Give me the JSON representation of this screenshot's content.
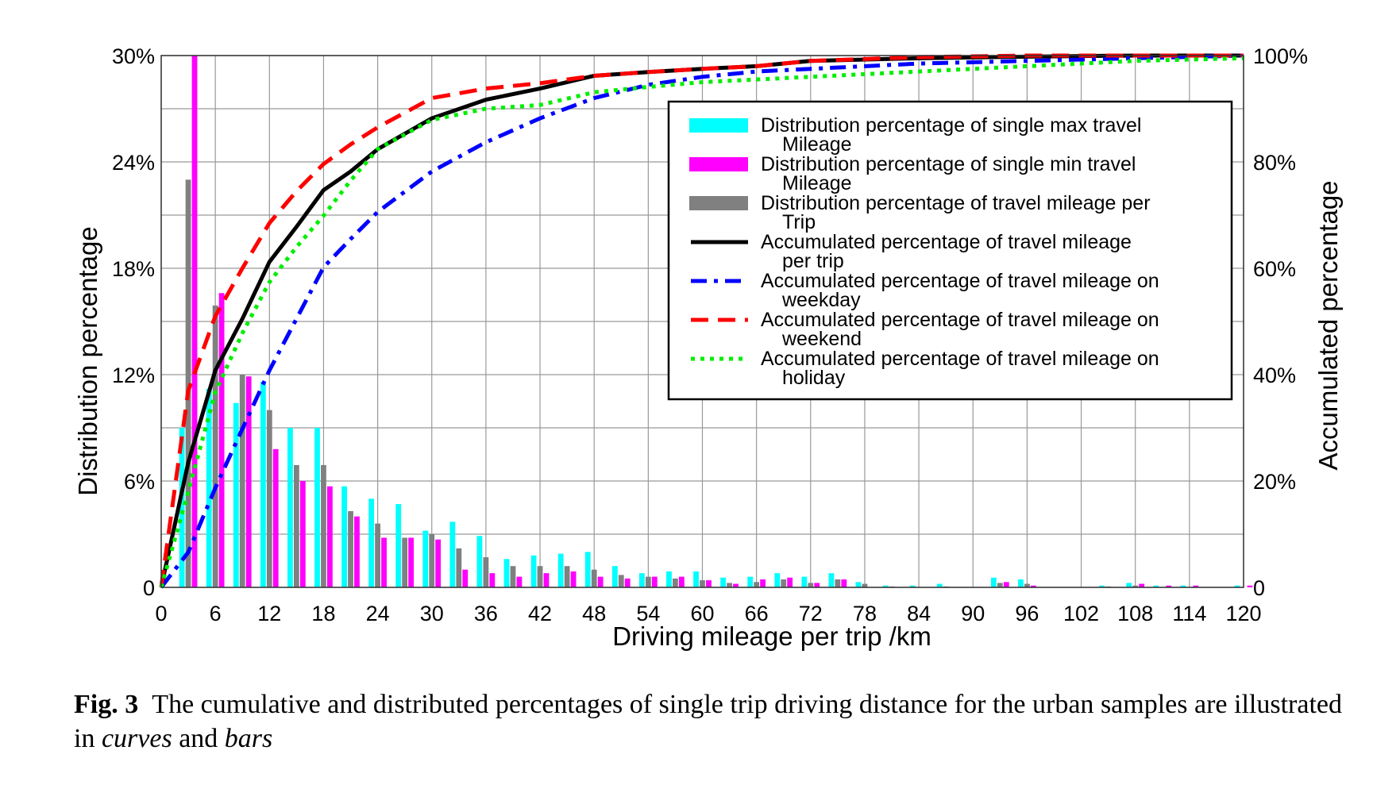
{
  "chart_data": {
    "type": "bar+line",
    "xlabel": "Driving mileage per trip /km",
    "ylabel": "Distribution percentage",
    "y2label": "Accumulated percentage",
    "xlim": [
      0,
      120
    ],
    "ylim": [
      0,
      30
    ],
    "y2lim": [
      0,
      100
    ],
    "grid": true,
    "legend_position": "center-right",
    "x_ticks": [
      "0",
      "6",
      "12",
      "18",
      "24",
      "30",
      "36",
      "42",
      "48",
      "54",
      "60",
      "66",
      "72",
      "78",
      "84",
      "90",
      "96",
      "102",
      "108",
      "114",
      "120"
    ],
    "y_ticks": [
      "0",
      "6%",
      "12%",
      "18%",
      "24%",
      "30%"
    ],
    "y2_ticks": [
      "0",
      "20%",
      "40%",
      "60%",
      "80%",
      "100%"
    ],
    "bar_x": [
      3,
      6,
      9,
      12,
      15,
      18,
      21,
      24,
      27,
      30,
      33,
      36,
      39,
      42,
      45,
      48,
      51,
      54,
      57,
      60,
      63,
      66,
      69,
      72,
      75,
      78,
      81,
      84,
      87,
      90,
      93,
      96,
      99,
      102,
      105,
      108,
      111,
      114,
      117,
      120
    ],
    "bar_series": [
      {
        "name": "Distribution percentage of single max travel Mileage",
        "label_lines": [
          "Distribution percentage of single max travel",
          "Mileage"
        ],
        "color": "#00ffff",
        "values": [
          9.0,
          11.2,
          10.4,
          11.6,
          9.0,
          9.0,
          5.7,
          5.0,
          4.7,
          3.2,
          3.7,
          2.9,
          1.6,
          1.8,
          1.9,
          2.0,
          1.2,
          0.8,
          0.9,
          0.9,
          0.55,
          0.6,
          0.8,
          0.6,
          0.8,
          0.3,
          0.1,
          0.1,
          0.2,
          0,
          0.55,
          0.45,
          0,
          0,
          0.1,
          0.25,
          0.1,
          0.1,
          0,
          0.1
        ]
      },
      {
        "name": "Distribution percentage of single min travel Mileage",
        "label_lines": [
          "Distribution percentage of single min travel",
          "Mileage"
        ],
        "color": "#ff00ff",
        "values": [
          30.0,
          16.6,
          11.9,
          7.8,
          6.0,
          5.7,
          4.0,
          2.8,
          2.8,
          2.7,
          1.0,
          0.8,
          0.6,
          0.8,
          0.9,
          0.6,
          0.5,
          0.6,
          0.6,
          0.4,
          0.2,
          0.45,
          0.55,
          0.25,
          0.45,
          0,
          0,
          0,
          0,
          0,
          0.3,
          0.1,
          0,
          0,
          0,
          0.2,
          0.1,
          0.1,
          0,
          0.1
        ]
      },
      {
        "name": "Distribution percentage of travel mileage per Trip",
        "label_lines": [
          "Distribution percentage of travel mileage per",
          "Trip"
        ],
        "color": "#808080",
        "values": [
          23.0,
          15.9,
          12.0,
          10.0,
          6.9,
          6.9,
          4.3,
          3.6,
          2.8,
          3.0,
          2.2,
          1.7,
          1.2,
          1.2,
          1.2,
          1.0,
          0.7,
          0.6,
          0.5,
          0.4,
          0.25,
          0.3,
          0.45,
          0.25,
          0.45,
          0.2,
          0.05,
          0,
          0.05,
          0,
          0.25,
          0.2,
          0,
          0,
          0.05,
          0.1,
          0,
          0,
          0,
          0
        ]
      }
    ],
    "line_x": [
      0,
      3,
      6,
      9,
      12,
      15,
      18,
      21,
      24,
      30,
      36,
      42,
      48,
      54,
      60,
      66,
      72,
      84,
      96,
      108,
      120
    ],
    "line_series": [
      {
        "name": "Accumulated percentage of travel mileage per trip",
        "label_lines": [
          "Accumulated percentage of travel mileage",
          "per trip"
        ],
        "color": "#000000",
        "style": "solid",
        "values": [
          0,
          23.5,
          40.8,
          50.5,
          61.2,
          67.8,
          74.7,
          78.2,
          82.4,
          88.2,
          91.7,
          93.8,
          96.2,
          96.9,
          97.5,
          98,
          99,
          99.5,
          99.8,
          100,
          100
        ]
      },
      {
        "name": "Accumulated percentage of travel mileage on weekday",
        "label_lines": [
          "Accumulated percentage of travel mileage on",
          "weekday"
        ],
        "color": "#0000ff",
        "style": "dashdot",
        "values": [
          0,
          6.6,
          18.7,
          29.8,
          40.8,
          50.5,
          60.2,
          65.5,
          70.6,
          78.2,
          83.7,
          88.2,
          92,
          94.5,
          96,
          97,
          97.5,
          98.5,
          99,
          99.5,
          100
        ]
      },
      {
        "name": "Accumulated percentage of travel mileage on weekend",
        "label_lines": [
          "Accumulated percentage of travel mileage on",
          "weekend"
        ],
        "color": "#ff0000",
        "style": "dashed",
        "values": [
          0,
          37,
          51,
          60,
          68.5,
          74.5,
          79.6,
          83.3,
          86.5,
          92,
          93.8,
          94.8,
          96.2,
          96.9,
          97.5,
          98,
          99,
          99.7,
          100,
          100,
          100
        ]
      },
      {
        "name": "Accumulated percentage of travel mileage on holiday",
        "label_lines": [
          "Accumulated percentage of travel mileage on",
          "holiday"
        ],
        "color": "#00ee00",
        "style": "dotted",
        "values": [
          0,
          18,
          36.7,
          47.8,
          57.4,
          64,
          69.9,
          76.5,
          82.4,
          87.9,
          90,
          90.7,
          93.1,
          94.1,
          95,
          95.5,
          96,
          97,
          98,
          99,
          99.5
        ]
      }
    ]
  },
  "caption": {
    "label": "Fig. 3",
    "text_1": "The cumulative and distributed percentages of single trip driving distance for the urban samples are illustrated in ",
    "em_1": "curves",
    "text_2": " and ",
    "em_2": "bars"
  }
}
